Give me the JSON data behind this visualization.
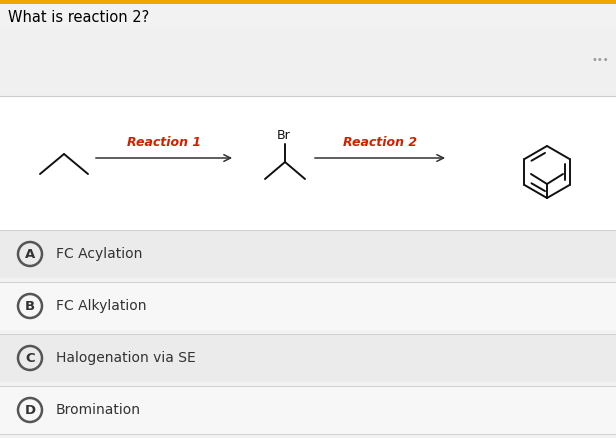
{
  "title": "What is reaction 2?",
  "title_color": "#000000",
  "title_fontsize": 10.5,
  "bg_color": "#f2f2f2",
  "top_bar_color": "#f0a500",
  "reaction1_label": "Reaction 1",
  "reaction2_label": "Reaction 2",
  "reaction_label_color": "#cc2200",
  "br_label": "Br",
  "choices": [
    {
      "letter": "A",
      "text": "FC Acylation"
    },
    {
      "letter": "B",
      "text": "FC Alkylation"
    },
    {
      "letter": "C",
      "text": "Halogenation via SE"
    },
    {
      "letter": "D",
      "text": "Bromination"
    }
  ],
  "choice_bg_colors": [
    "#ebebeb",
    "#f7f7f7",
    "#ebebeb",
    "#f7f7f7"
  ],
  "choice_divider_color": "#d0d0d0",
  "choice_text_color": "#333333",
  "choice_fontsize": 10,
  "header_bg": "#efefef",
  "header_text_color": "#888888"
}
